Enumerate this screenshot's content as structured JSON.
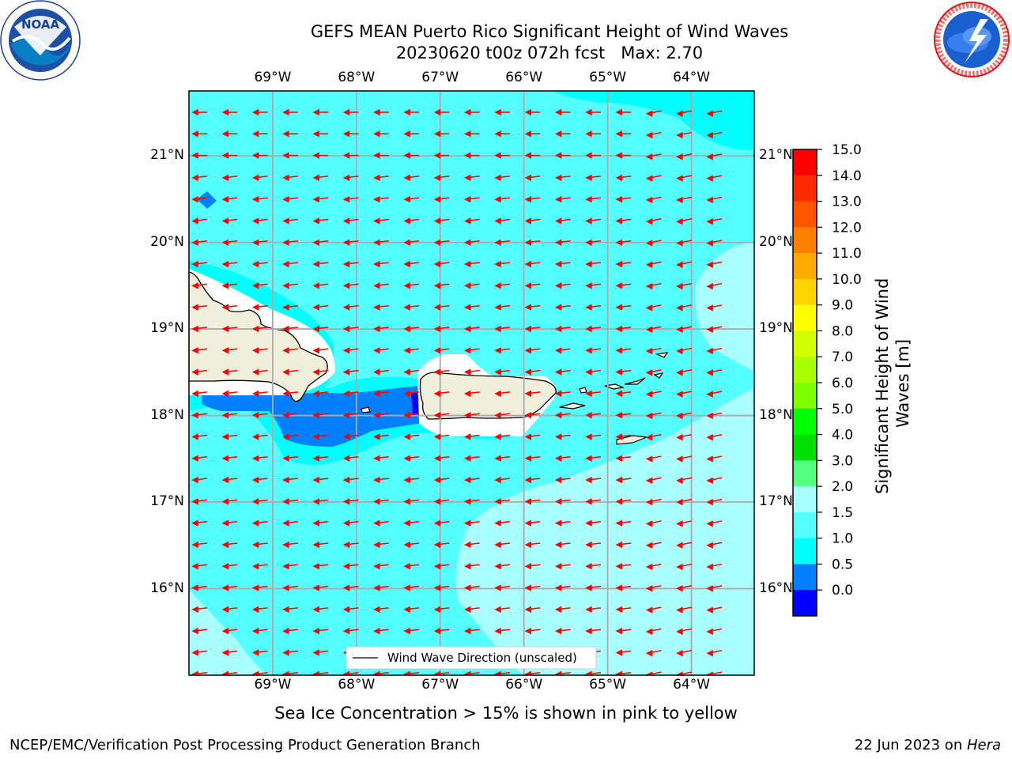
{
  "title": {
    "line1": "GEFS MEAN Puerto Rico Significant Height of Wind Waves",
    "line2": "20230620 t00z 072h fcst   Max: 2.70"
  },
  "map": {
    "lon_ticks": [
      "69°W",
      "68°W",
      "67°W",
      "66°W",
      "65°W",
      "64°W"
    ],
    "lat_ticks": [
      "21°N",
      "20°N",
      "19°N",
      "18°N",
      "17°N",
      "16°N"
    ],
    "legend_label": "Wind Wave Direction (unscaled)",
    "arrow_color": "#ff0000",
    "extent": {
      "lon": [
        -70.0,
        -63.25
      ],
      "lat": [
        15.0,
        21.75
      ]
    }
  },
  "colorbar": {
    "label": "Significant Height of Wind Waves [m]",
    "label_line1": "Significant Height of Wind",
    "label_line2": "Waves [m]",
    "ticks": [
      "15.0",
      "14.0",
      "13.0",
      "12.0",
      "11.0",
      "10.0",
      "9.0",
      "8.0",
      "7.0",
      "6.0",
      "5.0",
      "4.0",
      "3.0",
      "2.0",
      "1.5",
      "1.0",
      "0.5",
      "0.0"
    ],
    "colors_top_to_bottom": [
      "#ff0000",
      "#ff2a00",
      "#ff5500",
      "#ff8000",
      "#ffaa00",
      "#ffd400",
      "#ffff00",
      "#d4ff00",
      "#aaff00",
      "#80ff00",
      "#00ff00",
      "#00e000",
      "#55ff80",
      "#aaffff",
      "#55ffff",
      "#00ffff",
      "#0080ff",
      "#0000ff"
    ]
  },
  "subnote": "Sea Ice Concentration > 15% is shown in pink to yellow",
  "footer": {
    "left": "NCEP/EMC/Verification Post Processing Product Generation Branch",
    "date": "22 Jun 2023 on ",
    "machine": "Hera"
  },
  "logos": {
    "left_text": "NOAA",
    "right_text": "NATIONAL WEATHER SERVICE"
  }
}
